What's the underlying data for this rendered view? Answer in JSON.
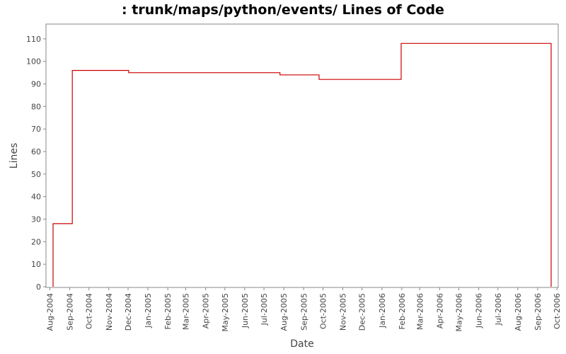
{
  "chart_data": {
    "type": "line",
    "step": true,
    "title": ": trunk/maps/python/events/ Lines of Code",
    "xlabel": "Date",
    "ylabel": "Lines",
    "ylim": [
      0,
      115
    ],
    "y_ticks": [
      0,
      10,
      20,
      30,
      40,
      50,
      60,
      70,
      80,
      90,
      100,
      110
    ],
    "x_ticks": [
      "Aug-2004",
      "Sep-2004",
      "Oct-2004",
      "Nov-2004",
      "Dec-2004",
      "Jan-2005",
      "Feb-2005",
      "Mar-2005",
      "Apr-2005",
      "May-2005",
      "Jun-2005",
      "Jul-2005",
      "Aug-2005",
      "Sep-2005",
      "Oct-2005",
      "Nov-2005",
      "Dec-2005",
      "Jan-2006",
      "Feb-2006",
      "Mar-2006",
      "Apr-2006",
      "May-2006",
      "Jun-2006",
      "Jul-2006",
      "Aug-2006",
      "Sep-2006",
      "Oct-2006"
    ],
    "xlim": [
      "2004-07-26",
      "2006-10-03"
    ],
    "grid": false,
    "line_color": "#cc0000",
    "series": [
      {
        "x": [
          "2004-08-06",
          "2004-09-05",
          "2004-12-02",
          "2005-07-26",
          "2005-09-25",
          "2006-01-31",
          "2006-09-22"
        ],
        "values": [
          28,
          96,
          95,
          94,
          92,
          108,
          0
        ]
      }
    ]
  }
}
